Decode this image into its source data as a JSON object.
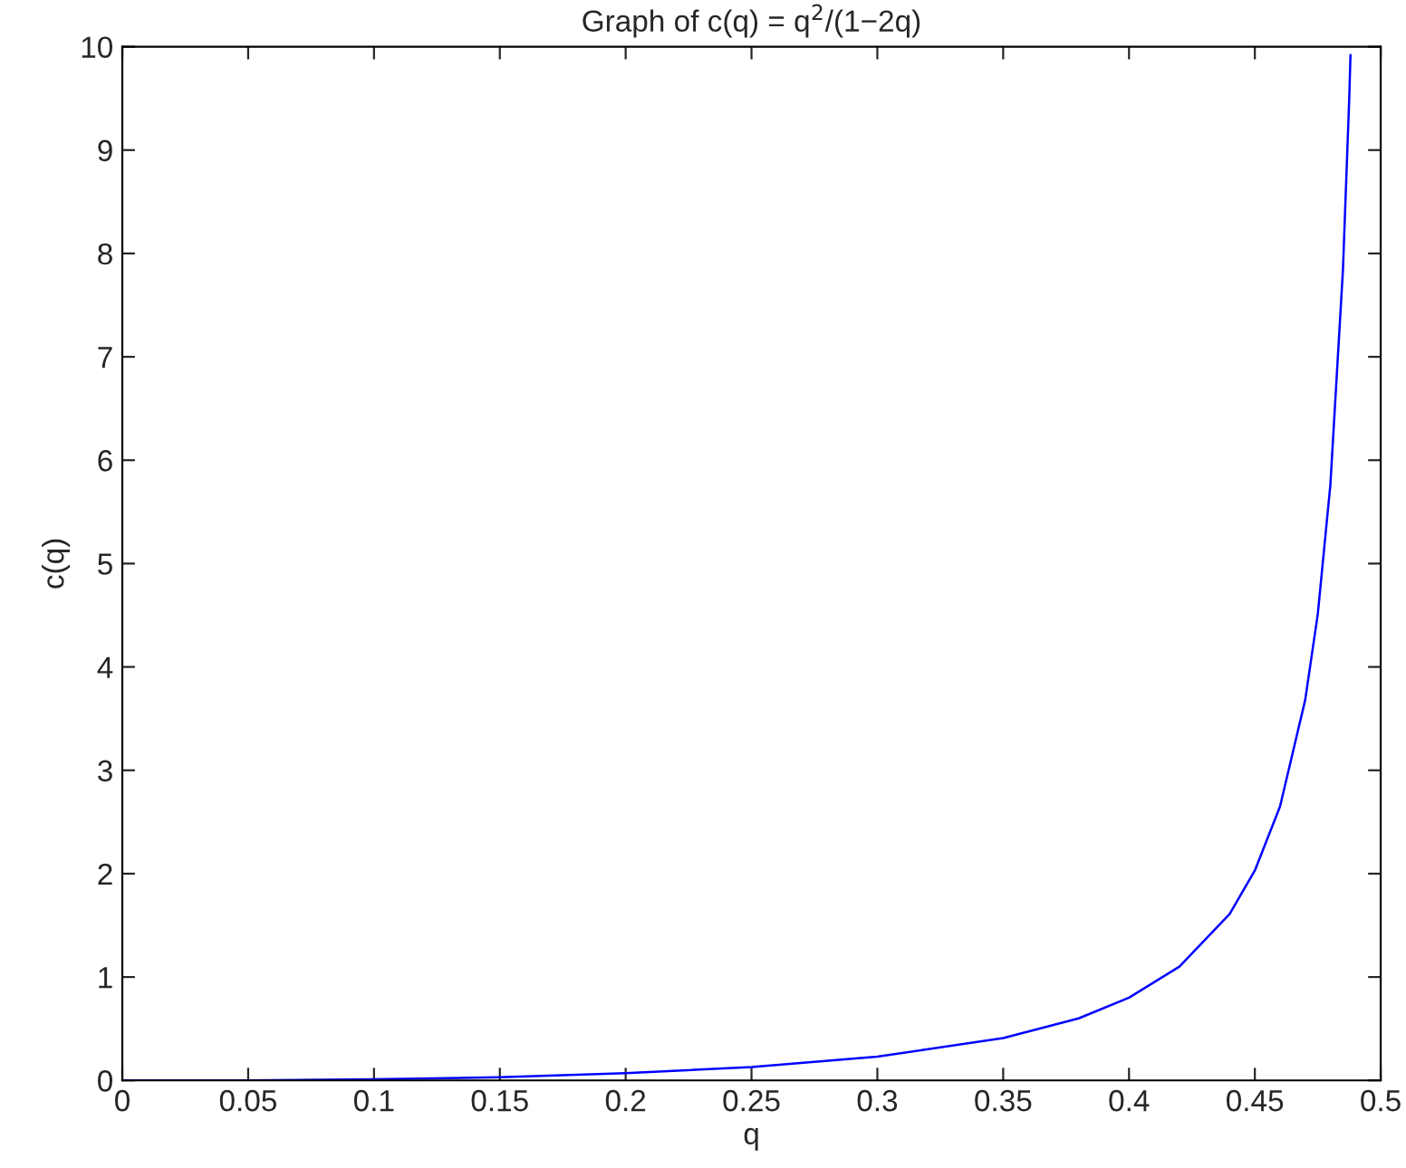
{
  "chart_data": {
    "type": "line",
    "title": "Graph of c(q) = q$^{2}$/(1−2q)",
    "xlabel": "q",
    "ylabel": "c(q)",
    "xlim": [
      0,
      0.5
    ],
    "ylim": [
      0,
      10
    ],
    "xticks": [
      0,
      0.05,
      0.1,
      0.15,
      0.2,
      0.25,
      0.3,
      0.35,
      0.4,
      0.45,
      0.5
    ],
    "yticks": [
      0,
      1,
      2,
      3,
      4,
      5,
      6,
      7,
      8,
      9,
      10
    ],
    "grid": false,
    "legend": false,
    "marker": "none",
    "line_style": "solid",
    "series": [
      {
        "color": "#0000ff",
        "x": [
          0,
          0.05,
          0.1,
          0.15,
          0.2,
          0.25,
          0.3,
          0.35,
          0.38,
          0.4,
          0.42,
          0.44,
          0.45,
          0.46,
          0.47,
          0.475,
          0.48,
          0.485,
          0.4875,
          0.488
        ],
        "values": [
          0,
          0,
          0.01,
          0.03,
          0.07,
          0.13,
          0.23,
          0.41,
          0.6,
          0.8,
          1.1,
          1.61,
          2.03,
          2.65,
          3.68,
          4.51,
          5.76,
          7.84,
          9.5,
          9.92
        ]
      }
    ]
  }
}
